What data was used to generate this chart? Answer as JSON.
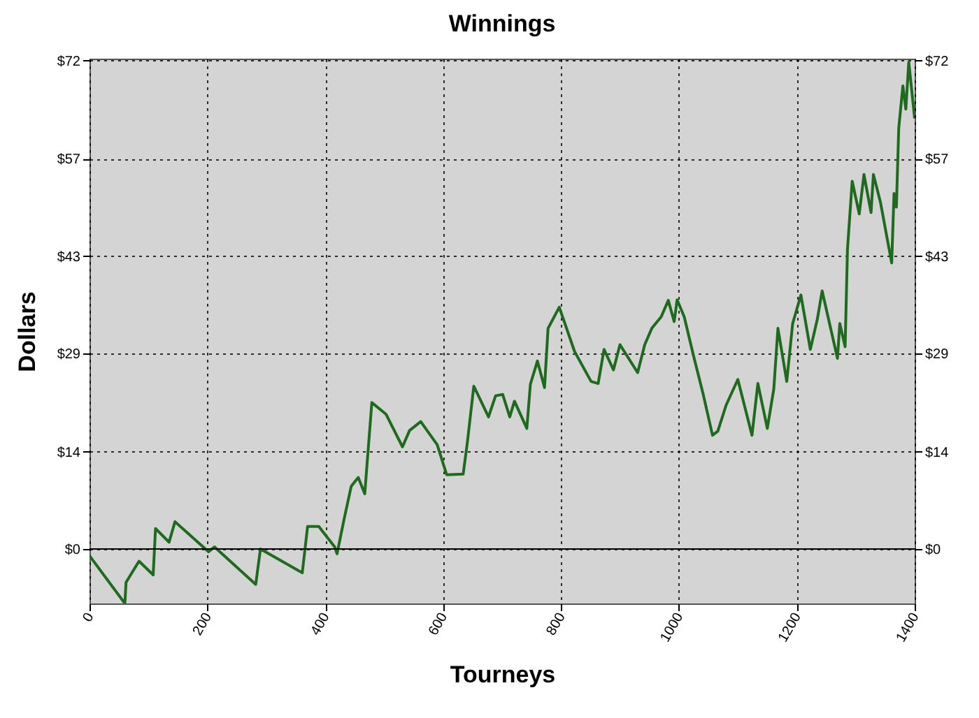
{
  "chart_data": {
    "type": "line",
    "title": "Winnings",
    "xlabel": "Tourneys",
    "ylabel": "Dollars",
    "series": [
      {
        "color": "#1e6b1e",
        "x": [
          0,
          60,
          62,
          84,
          108,
          112,
          135,
          145,
          202,
          212,
          282,
          290,
          353,
          361,
          370,
          389,
          416,
          420,
          432,
          444,
          456,
          467,
          479,
          503,
          531,
          543,
          562,
          590,
          606,
          634,
          641,
          652,
          677,
          689,
          701,
          713,
          721,
          742,
          748,
          760,
          772,
          778,
          797,
          823,
          851,
          863,
          873,
          889,
          900,
          930,
          942,
          954,
          970,
          982,
          992,
          997,
          1009,
          1025,
          1041,
          1057,
          1066,
          1080,
          1100,
          1124,
          1134,
          1150,
          1161,
          1168,
          1183,
          1193,
          1207,
          1223,
          1235,
          1243,
          1269,
          1273,
          1282,
          1286,
          1294,
          1306,
          1314,
          1326,
          1330,
          1342,
          1361,
          1365,
          1369,
          1373,
          1380,
          1385,
          1390,
          1400
        ],
        "values": [
          -1,
          -8,
          -4.9,
          -1.8,
          -3.8,
          3,
          1,
          4,
          -0.4,
          0.3,
          -5.2,
          0,
          -3.1,
          -3.5,
          3.3,
          3.3,
          0.3,
          -0.7,
          4.4,
          9.2,
          10.5,
          8.1,
          21.5,
          19.8,
          15,
          17.4,
          18.7,
          15.3,
          10.9,
          11,
          15.6,
          23.9,
          19.4,
          22.5,
          22.7,
          19.4,
          21.7,
          17.7,
          24.2,
          27.6,
          23.7,
          32.4,
          35.5,
          29,
          24.6,
          24.3,
          29.3,
          26.3,
          30,
          25.9,
          30,
          32.4,
          34.1,
          36.5,
          33.4,
          36.6,
          34.1,
          28.3,
          22.8,
          16.7,
          17.3,
          21.1,
          24.9,
          16.7,
          24.3,
          17.7,
          23.5,
          32.4,
          24.6,
          33.1,
          37.3,
          29.3,
          33.8,
          37.9,
          28,
          33.1,
          29.7,
          44,
          54,
          49.2,
          55,
          49.4,
          55,
          50.9,
          42,
          52.2,
          50.2,
          61.8,
          68,
          64.6,
          71.5,
          63.2
        ]
      }
    ],
    "xlim": [
      0,
      1400
    ],
    "xticks": [
      0,
      200,
      400,
      600,
      800,
      1000,
      1200,
      1400
    ],
    "ylim": [
      -8,
      72
    ],
    "yticks": [
      {
        "value": 0,
        "label": "$0"
      },
      {
        "value": 14.3,
        "label": "$14"
      },
      {
        "value": 28.7,
        "label": "$29"
      },
      {
        "value": 43,
        "label": "$43"
      },
      {
        "value": 57.3,
        "label": "$57"
      },
      {
        "value": 71.7,
        "label": "$72"
      }
    ],
    "y2lim": [
      -8,
      72
    ],
    "y2ticks": [
      {
        "value": 0,
        "label": "$0"
      },
      {
        "value": 14.3,
        "label": "$14"
      },
      {
        "value": 28.7,
        "label": "$29"
      },
      {
        "value": 43,
        "label": "$43"
      },
      {
        "value": 57.3,
        "label": "$57"
      },
      {
        "value": 71.7,
        "label": "$72"
      }
    ],
    "ref_lines": [
      {
        "axis": "y",
        "value": 0,
        "color": "#000000"
      }
    ],
    "grid": true
  }
}
